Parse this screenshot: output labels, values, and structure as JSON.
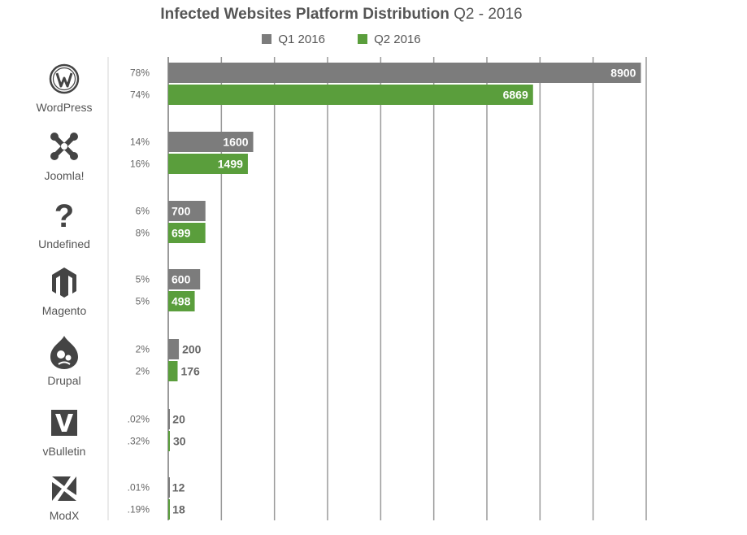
{
  "colors": {
    "q1": "#7c7c7c",
    "q2": "#5a9e3c",
    "grid": "#9a9a9a",
    "text": "#555555"
  },
  "chart_data": {
    "type": "bar",
    "orientation": "horizontal",
    "title": "Infected Websites Platform Distribution",
    "subtitle": "Q2 - 2016",
    "legend_position": "top-center",
    "grid": true,
    "xlim": [
      0,
      9000
    ],
    "categories": [
      "WordPress",
      "Joomla!",
      "Undefined",
      "Magento",
      "Drupal",
      "vBulletin",
      "ModX"
    ],
    "icons": [
      "wordpress-icon",
      "joomla-icon",
      "question-mark-icon",
      "magento-icon",
      "drupal-icon",
      "vbulletin-icon",
      "modx-icon"
    ],
    "series": [
      {
        "name": "Q1 2016",
        "color": "#7c7c7c",
        "values": [
          8900,
          1600,
          700,
          600,
          200,
          20,
          12
        ],
        "percent_labels": [
          "78%",
          "14%",
          "6%",
          "5%",
          "2%",
          ".02%",
          ".01%"
        ]
      },
      {
        "name": "Q2 2016",
        "color": "#5a9e3c",
        "values": [
          6869,
          1499,
          699,
          498,
          176,
          30,
          18
        ],
        "percent_labels": [
          "74%",
          "16%",
          "8%",
          "5%",
          "2%",
          ".32%",
          ".19%"
        ]
      }
    ]
  }
}
